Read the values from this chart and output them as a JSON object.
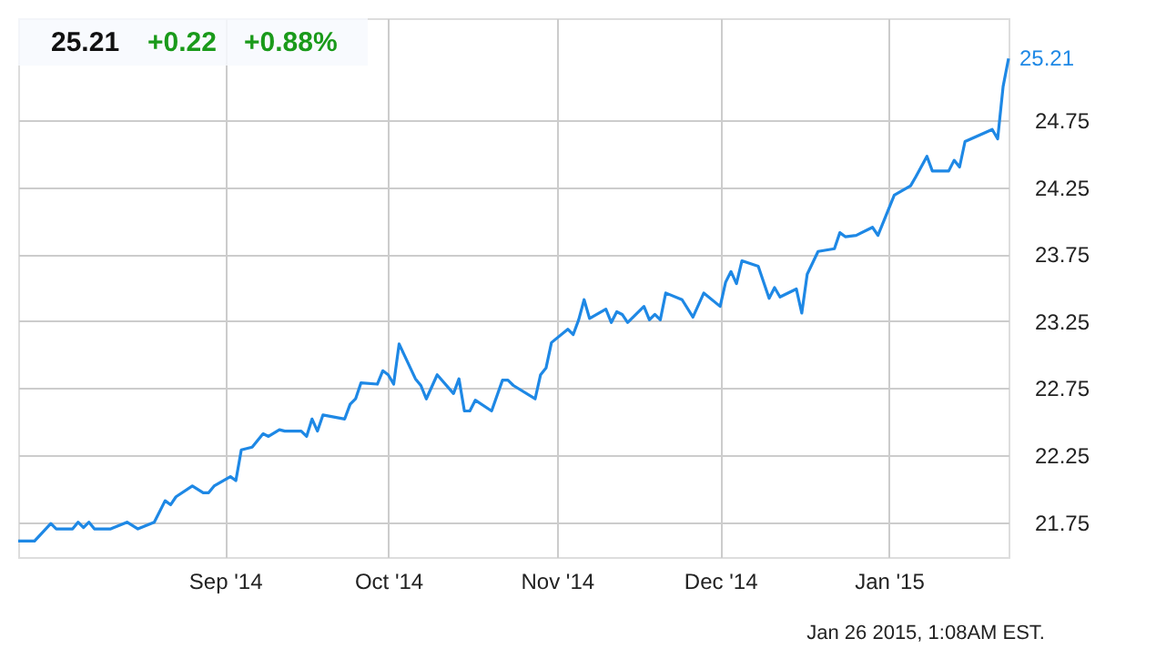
{
  "chart_data": {
    "type": "line",
    "title": "25.21 +0.22 +0.88%",
    "x": [
      "2014-07-25",
      "2014-07-28",
      "2014-07-31",
      "2014-08-01",
      "2014-08-04",
      "2014-08-05",
      "2014-08-06",
      "2014-08-07",
      "2014-08-08",
      "2014-08-11",
      "2014-08-14",
      "2014-08-16",
      "2014-08-19",
      "2014-08-21",
      "2014-08-22",
      "2014-08-23",
      "2014-08-26",
      "2014-08-28",
      "2014-08-29",
      "2014-08-30",
      "2014-09-02",
      "2014-09-03",
      "2014-09-04",
      "2014-09-06",
      "2014-09-08",
      "2014-09-09",
      "2014-09-11",
      "2014-09-12",
      "2014-09-15",
      "2014-09-16",
      "2014-09-17",
      "2014-09-18",
      "2014-09-19",
      "2014-09-23",
      "2014-09-24",
      "2014-09-25",
      "2014-09-26",
      "2014-09-29",
      "2014-09-30",
      "2014-10-01",
      "2014-10-02",
      "2014-10-03",
      "2014-10-06",
      "2014-10-07",
      "2014-10-08",
      "2014-10-10",
      "2014-10-13",
      "2014-10-14",
      "2014-10-15",
      "2014-10-16",
      "2014-10-17",
      "2014-10-20",
      "2014-10-22",
      "2014-10-23",
      "2014-10-24",
      "2014-10-28",
      "2014-10-29",
      "2014-10-30",
      "2014-10-31",
      "2014-11-03",
      "2014-11-04",
      "2014-11-05",
      "2014-11-06",
      "2014-11-07",
      "2014-11-10",
      "2014-11-11",
      "2014-11-12",
      "2014-11-13",
      "2014-11-14",
      "2014-11-17",
      "2014-11-18",
      "2014-11-19",
      "2014-11-20",
      "2014-11-21",
      "2014-11-24",
      "2014-11-26",
      "2014-11-28",
      "2014-12-01",
      "2014-12-02",
      "2014-12-03",
      "2014-12-04",
      "2014-12-05",
      "2014-12-08",
      "2014-12-10",
      "2014-12-11",
      "2014-12-12",
      "2014-12-15",
      "2014-12-16",
      "2014-12-17",
      "2014-12-19",
      "2014-12-22",
      "2014-12-23",
      "2014-12-24",
      "2014-12-26",
      "2014-12-29",
      "2014-12-30",
      "2014-12-31",
      "2015-01-02",
      "2015-01-05",
      "2015-01-06",
      "2015-01-08",
      "2015-01-09",
      "2015-01-12",
      "2015-01-13",
      "2015-01-14",
      "2015-01-15",
      "2015-01-20",
      "2015-01-21",
      "2015-01-22",
      "2015-01-23"
    ],
    "series": [
      {
        "color": "#1e88e5",
        "values": [
          21.61,
          21.61,
          21.74,
          21.7,
          21.7,
          21.75,
          21.71,
          21.75,
          21.7,
          21.7,
          21.75,
          21.7,
          21.75,
          21.91,
          21.88,
          21.94,
          22.02,
          21.97,
          21.97,
          22.02,
          22.09,
          22.06,
          22.29,
          22.31,
          22.41,
          22.39,
          22.44,
          22.43,
          22.43,
          22.39,
          22.52,
          22.43,
          22.55,
          22.52,
          22.63,
          22.67,
          22.79,
          22.78,
          22.88,
          22.85,
          22.78,
          23.08,
          22.82,
          22.77,
          22.67,
          22.85,
          22.71,
          22.82,
          22.58,
          22.58,
          22.66,
          22.58,
          22.81,
          22.81,
          22.77,
          22.67,
          22.85,
          22.9,
          23.09,
          23.19,
          23.15,
          23.26,
          23.41,
          23.27,
          23.34,
          23.24,
          23.32,
          23.3,
          23.24,
          23.36,
          23.26,
          23.3,
          23.26,
          23.46,
          23.41,
          23.28,
          23.46,
          23.36,
          23.54,
          23.62,
          23.53,
          23.7,
          23.66,
          23.42,
          23.5,
          23.43,
          23.49,
          23.31,
          23.6,
          23.77,
          23.79,
          23.91,
          23.88,
          23.89,
          23.95,
          23.89,
          23.99,
          24.19,
          24.26,
          24.33,
          24.48,
          24.37,
          24.37,
          24.45,
          24.4,
          24.59,
          24.68,
          24.61,
          25.0,
          25.21
        ]
      }
    ],
    "xlim": [
      "2014-07-25",
      "2015-01-23"
    ],
    "xticks": [
      {
        "value": "2014-09-01",
        "label": "Sep '14"
      },
      {
        "value": "2014-10-01",
        "label": "Oct '14"
      },
      {
        "value": "2014-11-01",
        "label": "Nov '14"
      },
      {
        "value": "2014-12-01",
        "label": "Dec '14"
      },
      {
        "value": "2015-01-01",
        "label": "Jan '15"
      }
    ],
    "ylim": [
      21.49,
      25.51
    ],
    "yticks": [
      21.75,
      22.25,
      22.75,
      23.25,
      23.75,
      24.25,
      24.75
    ],
    "grid": true,
    "marker": "none",
    "line_style": "solid",
    "annotations": [
      {
        "text": "25.21",
        "x": "2015-01-23",
        "y": 25.21
      },
      "Jan 26 2015, 1:08AM EST."
    ]
  }
}
